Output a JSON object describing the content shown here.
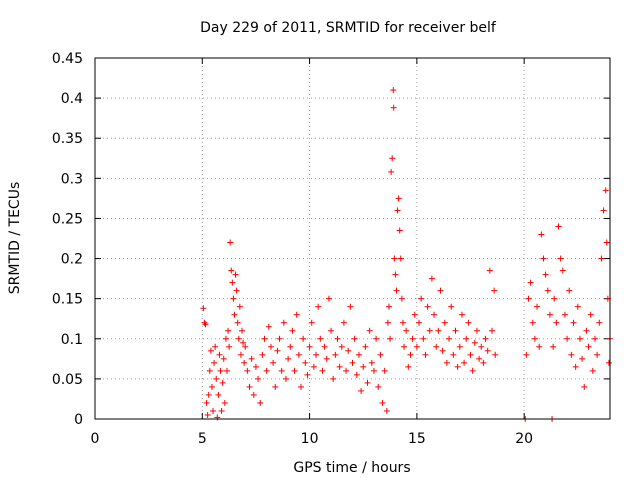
{
  "chart_data": {
    "type": "scatter",
    "title": "Day 229 of 2011, SRMTID for receiver belf",
    "xlabel": "GPS time / hours",
    "ylabel": "SRMTID / TECUs",
    "xlim": [
      0,
      24
    ],
    "ylim": [
      0,
      0.45
    ],
    "x_ticks": [
      0,
      5,
      10,
      15,
      20
    ],
    "x_tick_labels": [
      "0",
      "5",
      "10",
      "15",
      "20"
    ],
    "y_ticks": [
      0,
      0.05,
      0.1,
      0.15,
      0.2,
      0.25,
      0.3,
      0.35,
      0.4,
      0.45
    ],
    "y_tick_labels": [
      "0",
      "0.05",
      "0.1",
      "0.15",
      "0.2",
      "0.25",
      "0.3",
      "0.35",
      "0.4",
      "0.45"
    ],
    "grid": true,
    "marker": "+",
    "series_color": "#ff0000",
    "series": [
      {
        "name": "SRMTID",
        "points": [
          [
            5.05,
            0.138
          ],
          [
            5.1,
            0.12
          ],
          [
            5.15,
            0.118
          ],
          [
            5.2,
            0.02
          ],
          [
            5.25,
            0.005
          ],
          [
            5.3,
            0.03
          ],
          [
            5.35,
            0.06
          ],
          [
            5.4,
            0.085
          ],
          [
            5.45,
            0.04
          ],
          [
            5.5,
            0.01
          ],
          [
            5.55,
            0.07
          ],
          [
            5.6,
            0.09
          ],
          [
            5.65,
            0.05
          ],
          [
            5.7,
            0.002
          ],
          [
            5.75,
            0.03
          ],
          [
            5.8,
            0.08
          ],
          [
            5.85,
            0.06
          ],
          [
            5.9,
            0.01
          ],
          [
            5.95,
            0.045
          ],
          [
            6.0,
            0.075
          ],
          [
            6.05,
            0.02
          ],
          [
            6.1,
            0.1
          ],
          [
            6.15,
            0.06
          ],
          [
            6.2,
            0.11
          ],
          [
            6.25,
            0.09
          ],
          [
            6.3,
            0.22
          ],
          [
            6.35,
            0.185
          ],
          [
            6.4,
            0.17
          ],
          [
            6.45,
            0.15
          ],
          [
            6.5,
            0.13
          ],
          [
            6.55,
            0.18
          ],
          [
            6.6,
            0.16
          ],
          [
            6.65,
            0.12
          ],
          [
            6.7,
            0.1
          ],
          [
            6.75,
            0.14
          ],
          [
            6.8,
            0.08
          ],
          [
            6.85,
            0.11
          ],
          [
            6.9,
            0.095
          ],
          [
            6.95,
            0.07
          ],
          [
            7.0,
            0.09
          ],
          [
            7.1,
            0.06
          ],
          [
            7.2,
            0.04
          ],
          [
            7.3,
            0.075
          ],
          [
            7.4,
            0.03
          ],
          [
            7.5,
            0.065
          ],
          [
            7.6,
            0.05
          ],
          [
            7.7,
            0.02
          ],
          [
            7.8,
            0.08
          ],
          [
            7.9,
            0.1
          ],
          [
            8.0,
            0.06
          ],
          [
            8.1,
            0.115
          ],
          [
            8.2,
            0.09
          ],
          [
            8.3,
            0.07
          ],
          [
            8.4,
            0.04
          ],
          [
            8.5,
            0.085
          ],
          [
            8.6,
            0.1
          ],
          [
            8.7,
            0.06
          ],
          [
            8.8,
            0.12
          ],
          [
            8.9,
            0.05
          ],
          [
            9.0,
            0.075
          ],
          [
            9.1,
            0.09
          ],
          [
            9.2,
            0.11
          ],
          [
            9.3,
            0.06
          ],
          [
            9.4,
            0.13
          ],
          [
            9.5,
            0.08
          ],
          [
            9.6,
            0.04
          ],
          [
            9.7,
            0.1
          ],
          [
            9.8,
            0.07
          ],
          [
            9.9,
            0.055
          ],
          [
            10.0,
            0.09
          ],
          [
            10.1,
            0.12
          ],
          [
            10.2,
            0.065
          ],
          [
            10.3,
            0.08
          ],
          [
            10.4,
            0.14
          ],
          [
            10.5,
            0.1
          ],
          [
            10.6,
            0.06
          ],
          [
            10.7,
            0.09
          ],
          [
            10.8,
            0.075
          ],
          [
            10.9,
            0.15
          ],
          [
            11.0,
            0.11
          ],
          [
            11.1,
            0.05
          ],
          [
            11.2,
            0.08
          ],
          [
            11.3,
            0.1
          ],
          [
            11.4,
            0.065
          ],
          [
            11.5,
            0.09
          ],
          [
            11.6,
            0.12
          ],
          [
            11.7,
            0.06
          ],
          [
            11.8,
            0.085
          ],
          [
            11.9,
            0.14
          ],
          [
            12.0,
            0.07
          ],
          [
            12.1,
            0.1
          ],
          [
            12.2,
            0.055
          ],
          [
            12.3,
            0.08
          ],
          [
            12.4,
            0.035
          ],
          [
            12.5,
            0.065
          ],
          [
            12.6,
            0.09
          ],
          [
            12.7,
            0.045
          ],
          [
            12.8,
            0.11
          ],
          [
            12.9,
            0.07
          ],
          [
            13.0,
            0.06
          ],
          [
            13.1,
            0.1
          ],
          [
            13.2,
            0.04
          ],
          [
            13.3,
            0.08
          ],
          [
            13.4,
            0.02
          ],
          [
            13.5,
            0.06
          ],
          [
            13.6,
            0.01
          ],
          [
            13.65,
            0.12
          ],
          [
            13.7,
            0.14
          ],
          [
            13.75,
            0.1
          ],
          [
            13.8,
            0.308
          ],
          [
            13.85,
            0.325
          ],
          [
            13.9,
            0.41
          ],
          [
            13.92,
            0.388
          ],
          [
            13.95,
            0.2
          ],
          [
            14.0,
            0.18
          ],
          [
            14.05,
            0.16
          ],
          [
            14.1,
            0.26
          ],
          [
            14.15,
            0.275
          ],
          [
            14.2,
            0.235
          ],
          [
            14.25,
            0.2
          ],
          [
            14.3,
            0.15
          ],
          [
            14.35,
            0.12
          ],
          [
            14.4,
            0.09
          ],
          [
            14.5,
            0.11
          ],
          [
            14.6,
            0.065
          ],
          [
            14.7,
            0.08
          ],
          [
            14.8,
            0.1
          ],
          [
            14.9,
            0.13
          ],
          [
            15.0,
            0.09
          ],
          [
            15.1,
            0.12
          ],
          [
            15.2,
            0.15
          ],
          [
            15.3,
            0.1
          ],
          [
            15.4,
            0.08
          ],
          [
            15.5,
            0.14
          ],
          [
            15.6,
            0.11
          ],
          [
            15.7,
            0.175
          ],
          [
            15.8,
            0.13
          ],
          [
            15.9,
            0.09
          ],
          [
            16.0,
            0.11
          ],
          [
            16.1,
            0.16
          ],
          [
            16.2,
            0.085
          ],
          [
            16.3,
            0.12
          ],
          [
            16.4,
            0.07
          ],
          [
            16.5,
            0.1
          ],
          [
            16.6,
            0.14
          ],
          [
            16.7,
            0.08
          ],
          [
            16.8,
            0.11
          ],
          [
            16.9,
            0.065
          ],
          [
            17.0,
            0.09
          ],
          [
            17.1,
            0.13
          ],
          [
            17.2,
            0.07
          ],
          [
            17.3,
            0.1
          ],
          [
            17.4,
            0.12
          ],
          [
            17.5,
            0.08
          ],
          [
            17.6,
            0.06
          ],
          [
            17.7,
            0.095
          ],
          [
            17.8,
            0.11
          ],
          [
            17.9,
            0.075
          ],
          [
            18.0,
            0.09
          ],
          [
            18.1,
            0.07
          ],
          [
            18.2,
            0.1
          ],
          [
            18.3,
            0.085
          ],
          [
            18.4,
            0.185
          ],
          [
            18.5,
            0.11
          ],
          [
            18.6,
            0.16
          ],
          [
            18.65,
            0.08
          ],
          [
            20.05,
            0.0
          ],
          [
            20.1,
            0.08
          ],
          [
            20.2,
            0.15
          ],
          [
            20.3,
            0.17
          ],
          [
            20.4,
            0.12
          ],
          [
            20.5,
            0.1
          ],
          [
            20.6,
            0.14
          ],
          [
            20.7,
            0.09
          ],
          [
            20.8,
            0.23
          ],
          [
            20.9,
            0.2
          ],
          [
            21.0,
            0.18
          ],
          [
            21.1,
            0.16
          ],
          [
            21.2,
            0.13
          ],
          [
            21.3,
            0.0
          ],
          [
            21.35,
            0.09
          ],
          [
            21.4,
            0.15
          ],
          [
            21.5,
            0.12
          ],
          [
            21.6,
            0.24
          ],
          [
            21.7,
            0.2
          ],
          [
            21.8,
            0.185
          ],
          [
            21.9,
            0.13
          ],
          [
            22.0,
            0.1
          ],
          [
            22.1,
            0.16
          ],
          [
            22.2,
            0.08
          ],
          [
            22.3,
            0.12
          ],
          [
            22.4,
            0.065
          ],
          [
            22.5,
            0.14
          ],
          [
            22.6,
            0.1
          ],
          [
            22.7,
            0.075
          ],
          [
            22.8,
            0.04
          ],
          [
            22.9,
            0.11
          ],
          [
            23.0,
            0.09
          ],
          [
            23.1,
            0.13
          ],
          [
            23.2,
            0.06
          ],
          [
            23.3,
            0.1
          ],
          [
            23.4,
            0.08
          ],
          [
            23.5,
            0.12
          ],
          [
            23.6,
            0.2
          ],
          [
            23.7,
            0.26
          ],
          [
            23.8,
            0.285
          ],
          [
            23.85,
            0.22
          ],
          [
            23.9,
            0.15
          ],
          [
            23.95,
            0.07
          ],
          [
            24.0,
            0.1
          ]
        ]
      }
    ]
  }
}
